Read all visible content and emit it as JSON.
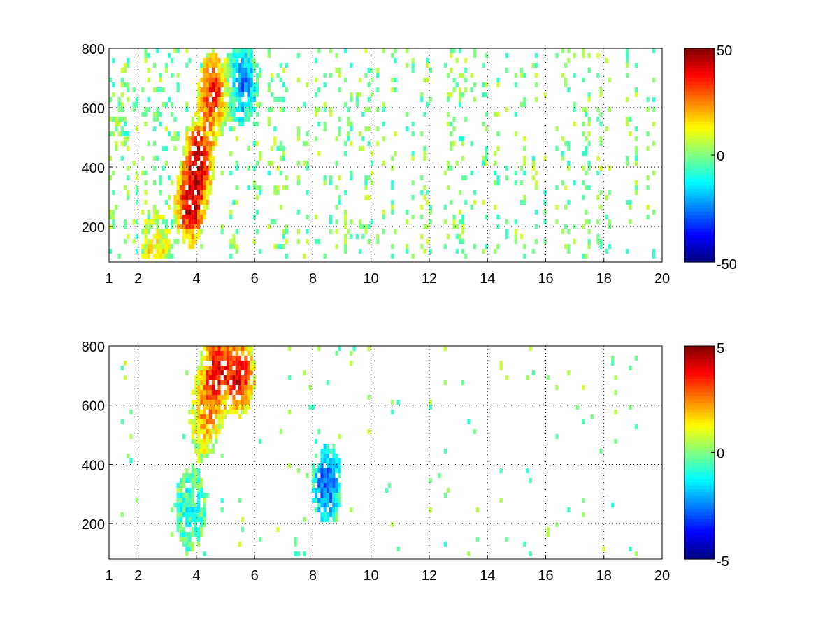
{
  "figure": {
    "background": "#ffffff",
    "colormap": "jet"
  },
  "chart_data": [
    {
      "type": "heatmap",
      "title": "",
      "xlabel": "",
      "ylabel": "",
      "xlim": [
        1,
        20
      ],
      "ylim": [
        80,
        800
      ],
      "xticks": [
        1,
        2,
        4,
        6,
        8,
        10,
        12,
        14,
        16,
        18,
        20
      ],
      "xtick_labels": [
        "1",
        "2",
        "4",
        "6",
        "8",
        "10",
        "12",
        "14",
        "16",
        "18",
        "20"
      ],
      "yticks": [
        200,
        400,
        600,
        800
      ],
      "ytick_labels": [
        "200",
        "400",
        "600",
        "800"
      ],
      "grid": "dotted",
      "colorbar": {
        "range": [
          -50,
          50
        ],
        "ticks": [
          50,
          0,
          -50
        ],
        "tick_labels": [
          "50",
          "0",
          "-50"
        ]
      },
      "features": [
        {
          "x": 4.1,
          "y": 420,
          "value": 40
        },
        {
          "x": 3.8,
          "y": 260,
          "value": 42
        },
        {
          "x": 4.6,
          "y": 650,
          "value": 35
        },
        {
          "x": 5.6,
          "y": 680,
          "value": -25
        },
        {
          "x": 2.6,
          "y": 100,
          "value": 15
        }
      ],
      "density": 0.9
    },
    {
      "type": "heatmap",
      "title": "",
      "xlabel": "",
      "ylabel": "",
      "xlim": [
        1,
        20
      ],
      "ylim": [
        80,
        800
      ],
      "xticks": [
        1,
        2,
        4,
        6,
        8,
        10,
        12,
        14,
        16,
        18,
        20
      ],
      "xtick_labels": [
        "1",
        "2",
        "4",
        "6",
        "8",
        "10",
        "12",
        "14",
        "16",
        "18",
        "20"
      ],
      "yticks": [
        200,
        400,
        600,
        800
      ],
      "ytick_labels": [
        "200",
        "400",
        "600",
        "800"
      ],
      "grid": "dotted",
      "colorbar": {
        "range": [
          -5,
          5
        ],
        "ticks": [
          5,
          0,
          -5
        ],
        "tick_labels": [
          "5",
          "0",
          "-5"
        ]
      },
      "features": [
        {
          "x": 4.7,
          "y": 720,
          "value": 4
        },
        {
          "x": 5.5,
          "y": 700,
          "value": 4
        },
        {
          "x": 4.3,
          "y": 560,
          "value": 2
        },
        {
          "x": 3.8,
          "y": 240,
          "value": -1
        },
        {
          "x": 8.5,
          "y": 330,
          "value": -3
        }
      ],
      "density": 0.2
    }
  ]
}
